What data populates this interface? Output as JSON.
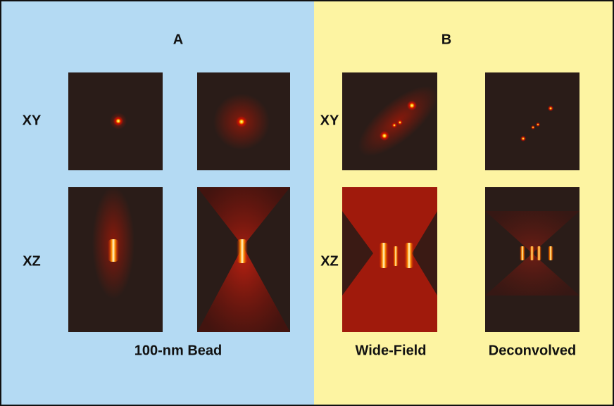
{
  "panels": [
    {
      "label": "A",
      "rows": [
        "XY",
        "XZ"
      ],
      "captions": [
        "100-nm Bead"
      ]
    },
    {
      "label": "B",
      "rows": [
        "XY",
        "XZ"
      ],
      "captions": [
        "Wide-Field",
        "Deconvolved"
      ]
    }
  ]
}
